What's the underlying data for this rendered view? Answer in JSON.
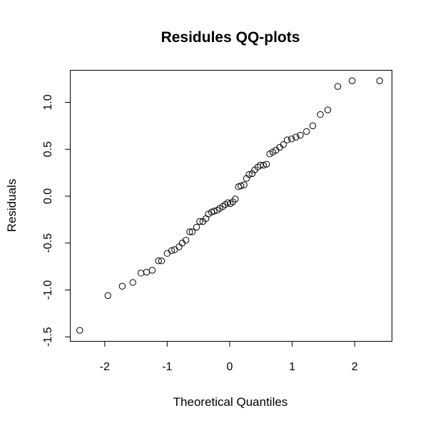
{
  "chart_data": {
    "type": "scatter",
    "title": "Residules QQ-plots",
    "xlabel": "Theoretical Quantiles",
    "ylabel": "Residuals",
    "xlim": [
      -2.5,
      2.5
    ],
    "ylim": [
      -1.5,
      1.3
    ],
    "xticks": [
      -2,
      -1,
      0,
      1,
      2
    ],
    "xtick_labels": [
      "-2",
      "-1",
      "0",
      "1",
      "2"
    ],
    "yticks": [
      -1.5,
      -1.0,
      -0.5,
      0.0,
      0.5,
      1.0
    ],
    "ytick_labels": [
      "-1.5",
      "-1.0",
      "-0.5",
      "0.0",
      "0.5",
      "1.0"
    ],
    "grid": false,
    "marker": "open-circle",
    "points": [
      [
        -2.4,
        -1.43
      ],
      [
        -1.95,
        -1.06
      ],
      [
        -1.72,
        -0.96
      ],
      [
        -1.55,
        -0.92
      ],
      [
        -1.42,
        -0.82
      ],
      [
        -1.33,
        -0.81
      ],
      [
        -1.24,
        -0.79
      ],
      [
        -1.14,
        -0.69
      ],
      [
        -1.09,
        -0.69
      ],
      [
        -1.0,
        -0.61
      ],
      [
        -0.93,
        -0.58
      ],
      [
        -0.88,
        -0.57
      ],
      [
        -0.81,
        -0.54
      ],
      [
        -0.76,
        -0.5
      ],
      [
        -0.7,
        -0.47
      ],
      [
        -0.64,
        -0.38
      ],
      [
        -0.6,
        -0.38
      ],
      [
        -0.53,
        -0.33
      ],
      [
        -0.48,
        -0.27
      ],
      [
        -0.43,
        -0.27
      ],
      [
        -0.38,
        -0.24
      ],
      [
        -0.34,
        -0.19
      ],
      [
        -0.29,
        -0.17
      ],
      [
        -0.25,
        -0.16
      ],
      [
        -0.2,
        -0.15
      ],
      [
        -0.16,
        -0.13
      ],
      [
        -0.11,
        -0.11
      ],
      [
        -0.07,
        -0.09
      ],
      [
        -0.03,
        -0.07
      ],
      [
        0.01,
        -0.08
      ],
      [
        0.05,
        -0.06
      ],
      [
        0.09,
        -0.03
      ],
      [
        0.14,
        0.1
      ],
      [
        0.18,
        0.11
      ],
      [
        0.23,
        0.12
      ],
      [
        0.27,
        0.19
      ],
      [
        0.31,
        0.23
      ],
      [
        0.36,
        0.24
      ],
      [
        0.4,
        0.28
      ],
      [
        0.45,
        0.31
      ],
      [
        0.49,
        0.33
      ],
      [
        0.54,
        0.33
      ],
      [
        0.59,
        0.34
      ],
      [
        0.64,
        0.45
      ],
      [
        0.69,
        0.47
      ],
      [
        0.74,
        0.49
      ],
      [
        0.8,
        0.52
      ],
      [
        0.86,
        0.55
      ],
      [
        0.92,
        0.6
      ],
      [
        0.99,
        0.61
      ],
      [
        1.06,
        0.63
      ],
      [
        1.13,
        0.65
      ],
      [
        1.23,
        0.69
      ],
      [
        1.33,
        0.75
      ],
      [
        1.45,
        0.87
      ],
      [
        1.57,
        0.92
      ],
      [
        1.73,
        1.17
      ],
      [
        1.96,
        1.23
      ],
      [
        2.4,
        1.23
      ]
    ]
  }
}
